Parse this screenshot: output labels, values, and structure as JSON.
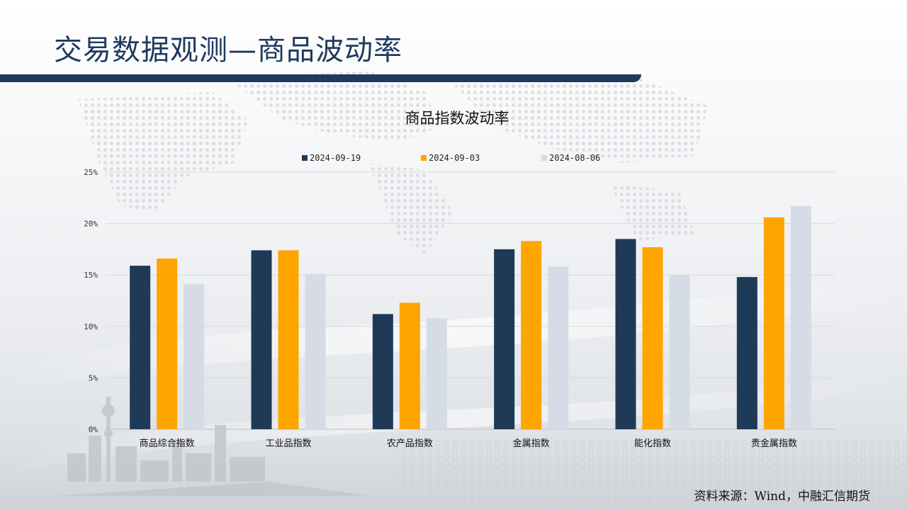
{
  "header": {
    "title": "交易数据观测—商品波动率"
  },
  "footer": {
    "source": "资料来源：Wind，中融汇信期货"
  },
  "colors": {
    "accent": "#1f3a5f",
    "series_1": "#1f3a57",
    "series_2": "#ffa500",
    "series_3": "#d6dce5"
  },
  "chart_data": {
    "type": "bar",
    "title": "商品指数波动率",
    "categories": [
      "商品综合指数",
      "工业品指数",
      "农产品指数",
      "金属指数",
      "能化指数",
      "贵金属指数"
    ],
    "series": [
      {
        "name": "2024-09-19",
        "color": "#1f3a57",
        "values": [
          15.9,
          17.4,
          11.2,
          17.5,
          18.5,
          14.8
        ]
      },
      {
        "name": "2024-09-03",
        "color": "#ffa500",
        "values": [
          16.6,
          17.4,
          12.3,
          18.3,
          17.7,
          20.6
        ]
      },
      {
        "name": "2024-08-06",
        "color": "#d6dce5",
        "values": [
          14.1,
          15.1,
          10.8,
          15.8,
          15.0,
          21.7
        ]
      }
    ],
    "y_ticks": [
      "0%",
      "5%",
      "10%",
      "15%",
      "20%",
      "25%"
    ],
    "ylim": [
      0,
      25
    ],
    "y_unit": "%",
    "grid": true,
    "legend_position": "top"
  }
}
